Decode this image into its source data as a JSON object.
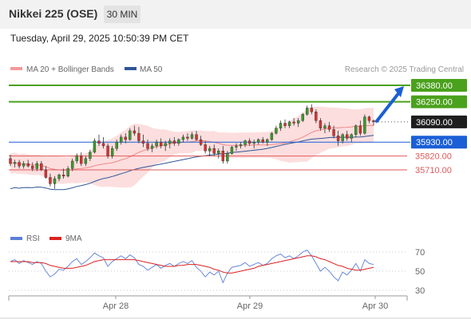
{
  "header": {
    "title": "Nikkei 225 (OSE)",
    "timeframe": "30 MIN",
    "datetime": "Tuesday, April 29, 2025 10:50:39 PM CET"
  },
  "legend": {
    "bollinger": "MA 20 + Bollinger Bands",
    "ma50": "MA 50",
    "credit": "Research © 2025 Trading Central",
    "rsi": "RSI",
    "rsi_ma": "9MA"
  },
  "colors": {
    "bull": "#3a9a2b",
    "bear": "#d83030",
    "ma50": "#2f5597",
    "band": "#f5b8b8",
    "green_level": "#4aa11c",
    "blue_level": "#1a5fd6",
    "support": "#e05a5a",
    "rsi": "#5b7fd8",
    "rsi_ma": "#dd2222"
  },
  "chart_data": [
    {
      "type": "candlestick",
      "title": "",
      "x_ticks": [
        "Apr 28",
        "Apr 29",
        "Apr 30"
      ],
      "y_range": [
        35450,
        36420
      ],
      "levels": [
        {
          "label": "36380.00",
          "value": 36380,
          "kind": "resistance"
        },
        {
          "label": "36250.00",
          "value": 36250,
          "kind": "resistance"
        },
        {
          "label": "36090.00",
          "value": 36090,
          "kind": "last"
        },
        {
          "label": "35930.00",
          "value": 35930,
          "kind": "pivot"
        },
        {
          "label": "35820.00",
          "value": 35820,
          "kind": "support"
        },
        {
          "label": "35710.00",
          "value": 35710,
          "kind": "support"
        }
      ],
      "forecast_arrow": {
        "from": 36090,
        "to": 36380
      },
      "candles": [
        [
          35800,
          35830,
          35740,
          35760
        ],
        [
          35760,
          35790,
          35730,
          35770
        ],
        [
          35770,
          35790,
          35720,
          35740
        ],
        [
          35740,
          35780,
          35720,
          35760
        ],
        [
          35760,
          35790,
          35730,
          35740
        ],
        [
          35740,
          35770,
          35700,
          35720
        ],
        [
          35720,
          35780,
          35700,
          35760
        ],
        [
          35760,
          35780,
          35700,
          35710
        ],
        [
          35710,
          35740,
          35640,
          35650
        ],
        [
          35650,
          35680,
          35580,
          35600
        ],
        [
          35600,
          35660,
          35560,
          35640
        ],
        [
          35640,
          35680,
          35620,
          35670
        ],
        [
          35670,
          35720,
          35640,
          35660
        ],
        [
          35660,
          35740,
          35650,
          35720
        ],
        [
          35720,
          35800,
          35700,
          35780
        ],
        [
          35780,
          35840,
          35760,
          35820
        ],
        [
          35820,
          35850,
          35740,
          35760
        ],
        [
          35760,
          35820,
          35740,
          35800
        ],
        [
          35800,
          35870,
          35780,
          35850
        ],
        [
          35850,
          35960,
          35840,
          35940
        ],
        [
          35940,
          35990,
          35900,
          35920
        ],
        [
          35920,
          35970,
          35880,
          35900
        ],
        [
          35900,
          35920,
          35800,
          35820
        ],
        [
          35820,
          35900,
          35800,
          35880
        ],
        [
          35880,
          35950,
          35860,
          35930
        ],
        [
          35930,
          35990,
          35910,
          35970
        ],
        [
          35970,
          36000,
          35920,
          35950
        ],
        [
          35950,
          36040,
          35940,
          36020
        ],
        [
          36020,
          36060,
          35980,
          36000
        ],
        [
          36000,
          36050,
          35920,
          35940
        ],
        [
          35940,
          35990,
          35890,
          35920
        ],
        [
          35920,
          35950,
          35860,
          35880
        ],
        [
          35880,
          35920,
          35850,
          35900
        ],
        [
          35900,
          35950,
          35880,
          35930
        ],
        [
          35930,
          35960,
          35880,
          35900
        ],
        [
          35900,
          35940,
          35860,
          35920
        ],
        [
          35920,
          35960,
          35880,
          35940
        ],
        [
          35940,
          35970,
          35900,
          35920
        ],
        [
          35920,
          35960,
          35900,
          35950
        ],
        [
          35950,
          35990,
          35930,
          35970
        ],
        [
          35970,
          36000,
          35940,
          35960
        ],
        [
          35960,
          36010,
          35950,
          35990
        ],
        [
          35990,
          36020,
          35940,
          35950
        ],
        [
          35950,
          35980,
          35900,
          35910
        ],
        [
          35910,
          35940,
          35840,
          35860
        ],
        [
          35860,
          35900,
          35820,
          35880
        ],
        [
          35880,
          35910,
          35820,
          35840
        ],
        [
          35840,
          35880,
          35800,
          35860
        ],
        [
          35860,
          35900,
          35760,
          35780
        ],
        [
          35780,
          35860,
          35760,
          35840
        ],
        [
          35840,
          35900,
          35830,
          35890
        ],
        [
          35890,
          35920,
          35860,
          35900
        ],
        [
          35900,
          35930,
          35880,
          35910
        ],
        [
          35910,
          35950,
          35890,
          35940
        ],
        [
          35940,
          35960,
          35900,
          35920
        ],
        [
          35920,
          35950,
          35880,
          35930
        ],
        [
          35930,
          35960,
          35910,
          35950
        ],
        [
          35950,
          35970,
          35920,
          35930
        ],
        [
          35930,
          35960,
          35900,
          35950
        ],
        [
          35950,
          36010,
          35940,
          36000
        ],
        [
          36000,
          36060,
          35990,
          36040
        ],
        [
          36040,
          36100,
          36020,
          36080
        ],
        [
          36080,
          36110,
          36040,
          36060
        ],
        [
          36060,
          36100,
          36040,
          36090
        ],
        [
          36090,
          36120,
          36060,
          36080
        ],
        [
          36080,
          36120,
          36050,
          36100
        ],
        [
          36100,
          36160,
          36090,
          36150
        ],
        [
          36150,
          36220,
          36140,
          36200
        ],
        [
          36200,
          36230,
          36150,
          36170
        ],
        [
          36170,
          36190,
          36080,
          36100
        ],
        [
          36100,
          36120,
          36020,
          36040
        ],
        [
          36040,
          36080,
          36000,
          36060
        ],
        [
          36060,
          36090,
          36010,
          36030
        ],
        [
          36030,
          36060,
          35960,
          35980
        ],
        [
          35980,
          36020,
          35900,
          35940
        ],
        [
          35940,
          36000,
          35920,
          35990
        ],
        [
          35990,
          36020,
          35940,
          35960
        ],
        [
          35960,
          36000,
          35930,
          35990
        ],
        [
          35990,
          36070,
          35970,
          36060
        ],
        [
          36060,
          36100,
          35980,
          36000
        ],
        [
          36000,
          36150,
          35990,
          36130
        ],
        [
          36130,
          36140,
          36080,
          36100
        ],
        [
          36100,
          36110,
          36060,
          36090
        ]
      ]
    },
    {
      "type": "line",
      "title": "",
      "y_ticks": [
        70,
        50,
        30
      ],
      "y_range": [
        20,
        80
      ],
      "series": [
        {
          "name": "RSI",
          "values": [
            60,
            62,
            58,
            61,
            59,
            57,
            60,
            58,
            50,
            44,
            47,
            52,
            51,
            55,
            60,
            63,
            57,
            60,
            64,
            69,
            66,
            64,
            55,
            60,
            63,
            66,
            63,
            67,
            64,
            57,
            55,
            51,
            54,
            57,
            53,
            56,
            58,
            55,
            58,
            60,
            58,
            61,
            54,
            50,
            44,
            49,
            46,
            50,
            38,
            48,
            54,
            55,
            56,
            59,
            55,
            57,
            59,
            56,
            58,
            63,
            66,
            68,
            64,
            66,
            63,
            66,
            70,
            72,
            66,
            58,
            50,
            54,
            50,
            44,
            40,
            49,
            46,
            51,
            58,
            50,
            62,
            58,
            57
          ]
        },
        {
          "name": "9MA",
          "values": [
            60,
            60,
            60,
            60,
            60,
            59,
            59,
            59,
            58,
            56,
            55,
            54,
            53,
            53,
            53,
            54,
            55,
            56,
            58,
            60,
            61,
            62,
            62,
            62,
            62,
            62,
            62,
            62,
            62,
            61,
            60,
            59,
            58,
            57,
            56,
            55,
            55,
            55,
            56,
            56,
            57,
            57,
            57,
            56,
            55,
            54,
            52,
            51,
            49,
            48,
            48,
            49,
            50,
            51,
            52,
            53,
            55,
            56,
            57,
            58,
            59,
            60,
            61,
            62,
            63,
            64,
            65,
            66,
            66,
            65,
            63,
            62,
            60,
            58,
            56,
            55,
            53,
            52,
            51,
            51,
            52,
            53,
            54
          ]
        }
      ]
    }
  ]
}
